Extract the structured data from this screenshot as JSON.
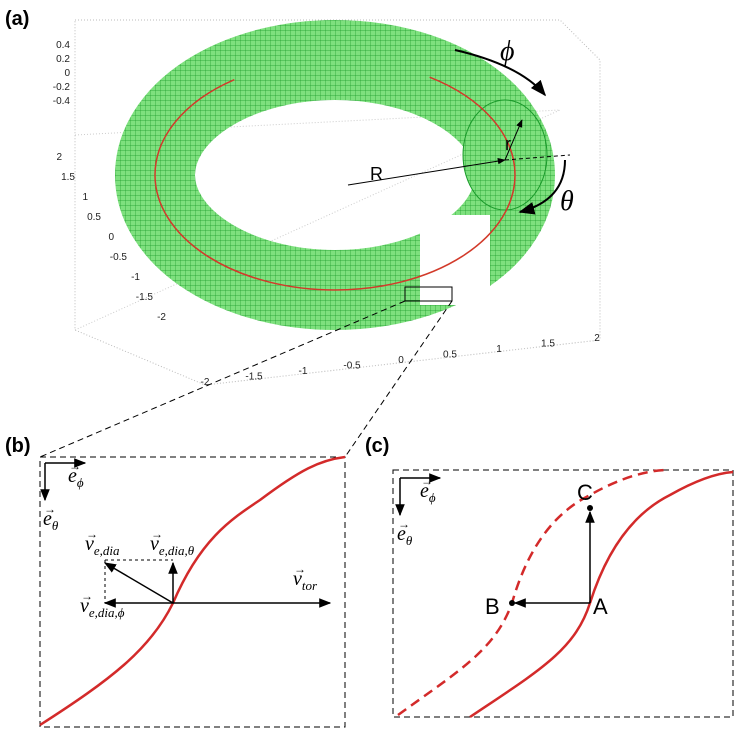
{
  "panels": {
    "a": {
      "label": "(a)",
      "phi": "ϕ",
      "theta": "θ",
      "R": "R",
      "r": "r",
      "z_ticks": [
        "0.4",
        "0.2",
        "0",
        "-0.2",
        "-0.4"
      ],
      "y_ticks": [
        "2",
        "1.5",
        "1",
        "0.5",
        "0",
        "-0.5",
        "-1",
        "-1.5",
        "-2"
      ],
      "x_ticks": [
        "-2",
        "-1.5",
        "-1",
        "-0.5",
        "0",
        "0.5",
        "1",
        "1.5",
        "2"
      ]
    },
    "b": {
      "label": "(b)",
      "e_phi": {
        "base": "e",
        "sub": "ϕ"
      },
      "e_theta": {
        "base": "e",
        "sub": "θ"
      },
      "v_dia": {
        "base": "v",
        "sub": "e,dia"
      },
      "v_dia_theta": {
        "base": "v",
        "sub": "e,dia,θ"
      },
      "v_tor": {
        "base": "v",
        "sub": "tor"
      },
      "v_dia_phi": {
        "base": "v",
        "sub": "e,dia,ϕ"
      }
    },
    "c": {
      "label": "(c)",
      "e_phi": {
        "base": "e",
        "sub": "ϕ"
      },
      "e_theta": {
        "base": "e",
        "sub": "θ"
      },
      "A": "A",
      "B": "B",
      "C": "C"
    }
  }
}
